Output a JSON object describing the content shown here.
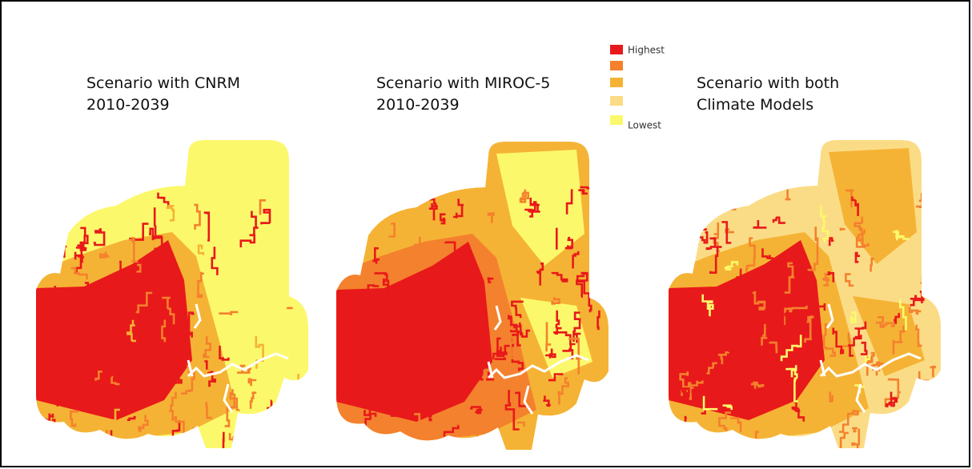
{
  "panels": [
    {
      "title": [
        "Scenario with CNRM",
        "2010-2039"
      ]
    },
    {
      "title": [
        "Scenario with MIROC-5",
        "2010-2039"
      ]
    },
    {
      "title": [
        "Scenario with both",
        "Climate Models"
      ]
    }
  ],
  "legend": {
    "items": [
      {
        "label": "Highest",
        "color": "#e8191a"
      },
      {
        "label": null,
        "color": "#f4812d"
      },
      {
        "label": null,
        "color": "#f5b335"
      },
      {
        "label": null,
        "color": "#fbdc86"
      },
      {
        "label": "Lowest",
        "color": "#fcf86c"
      }
    ]
  }
}
